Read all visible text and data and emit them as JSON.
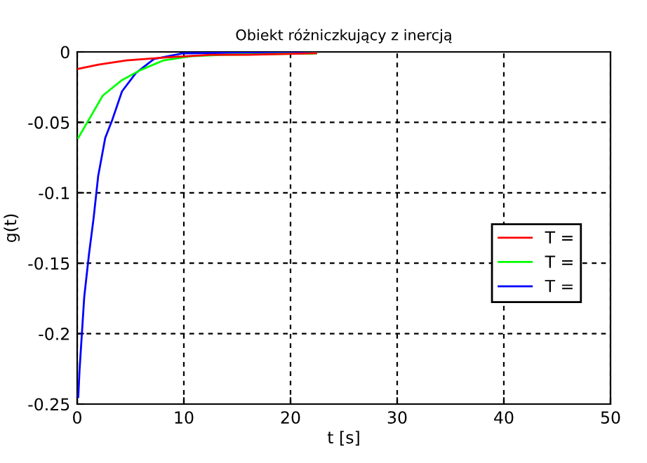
{
  "chart_data": {
    "type": "line",
    "title": "Obiekt różniczkujący z inercją",
    "xlabel": "t [s]",
    "ylabel": "g(t)",
    "xlim": [
      0,
      50
    ],
    "xticks": [
      0,
      10,
      20,
      30,
      40,
      50
    ],
    "ylim": [
      -0.25,
      0
    ],
    "yticks": [
      -0.25,
      -0.2,
      -0.15,
      -0.1,
      -0.05,
      0
    ],
    "grid": true,
    "legend": "right",
    "line_style": "solid",
    "marker": "none",
    "series": [
      {
        "name": "T =",
        "color": "#ff0000",
        "x": [
          0.1,
          2,
          4.6,
          8.1,
          12.5,
          16,
          22.4
        ],
        "values": [
          -0.012,
          -0.009,
          -0.006,
          -0.004,
          -0.002,
          -0.002,
          -0.001
        ]
      },
      {
        "name": "T =",
        "color": "#00ff00",
        "x": [
          0.1,
          1.1,
          2.4,
          4.2,
          5.9,
          8.1,
          10.7,
          13.8,
          22.4
        ],
        "values": [
          -0.061,
          -0.048,
          -0.031,
          -0.02,
          -0.013,
          -0.006,
          -0.003,
          -0.002,
          -0.001
        ]
      },
      {
        "name": "T =",
        "color": "#0000ff",
        "x": [
          0.1,
          0.22,
          0.66,
          1.1,
          1.54,
          1.97,
          2.63,
          3.3,
          4.2,
          5.5,
          7.2,
          9.9,
          22.4
        ],
        "values": [
          -0.245,
          -0.226,
          -0.174,
          -0.144,
          -0.118,
          -0.088,
          -0.061,
          -0.048,
          -0.028,
          -0.015,
          -0.005,
          -0.001,
          0
        ]
      }
    ]
  }
}
